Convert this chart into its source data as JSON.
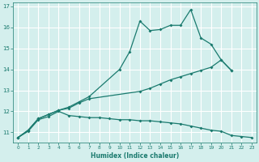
{
  "xlabel": "Humidex (Indice chaleur)",
  "background_color": "#d4efed",
  "grid_color": "#ffffff",
  "line_color": "#1a7a6e",
  "xlim": [
    -0.5,
    23.5
  ],
  "ylim": [
    10.5,
    17.2
  ],
  "xticks": [
    0,
    1,
    2,
    3,
    4,
    5,
    6,
    7,
    8,
    9,
    10,
    11,
    12,
    13,
    14,
    15,
    16,
    17,
    18,
    19,
    20,
    21,
    22,
    23
  ],
  "yticks": [
    11,
    12,
    13,
    14,
    15,
    16,
    17
  ],
  "series": [
    {
      "x": [
        0,
        1,
        2,
        3,
        4,
        5,
        6,
        7,
        10,
        11,
        12,
        13,
        14,
        15,
        16,
        17,
        18,
        19,
        20,
        21
      ],
      "y": [
        10.75,
        11.1,
        11.65,
        11.85,
        12.05,
        12.2,
        12.45,
        12.7,
        14.0,
        14.85,
        16.3,
        15.85,
        15.9,
        16.1,
        16.1,
        16.85,
        15.5,
        15.2,
        14.45,
        13.95
      ]
    },
    {
      "x": [
        0,
        1,
        2,
        3,
        4,
        5,
        6,
        7,
        12,
        13,
        14,
        15,
        16,
        17,
        18,
        19,
        20,
        21
      ],
      "y": [
        10.75,
        11.1,
        11.65,
        11.85,
        12.05,
        12.15,
        12.4,
        12.6,
        12.95,
        13.1,
        13.3,
        13.5,
        13.65,
        13.8,
        13.95,
        14.1,
        14.45,
        13.95
      ]
    },
    {
      "x": [
        0,
        1,
        2,
        3,
        4,
        5,
        6,
        7,
        8,
        9,
        10,
        11,
        12,
        13,
        14,
        15,
        16,
        17,
        18,
        19,
        20,
        21,
        22,
        23
      ],
      "y": [
        10.75,
        11.05,
        11.6,
        11.75,
        12.0,
        11.8,
        11.75,
        11.7,
        11.7,
        11.65,
        11.6,
        11.6,
        11.55,
        11.55,
        11.5,
        11.45,
        11.4,
        11.3,
        11.2,
        11.1,
        11.05,
        10.85,
        10.8,
        10.75
      ]
    }
  ]
}
